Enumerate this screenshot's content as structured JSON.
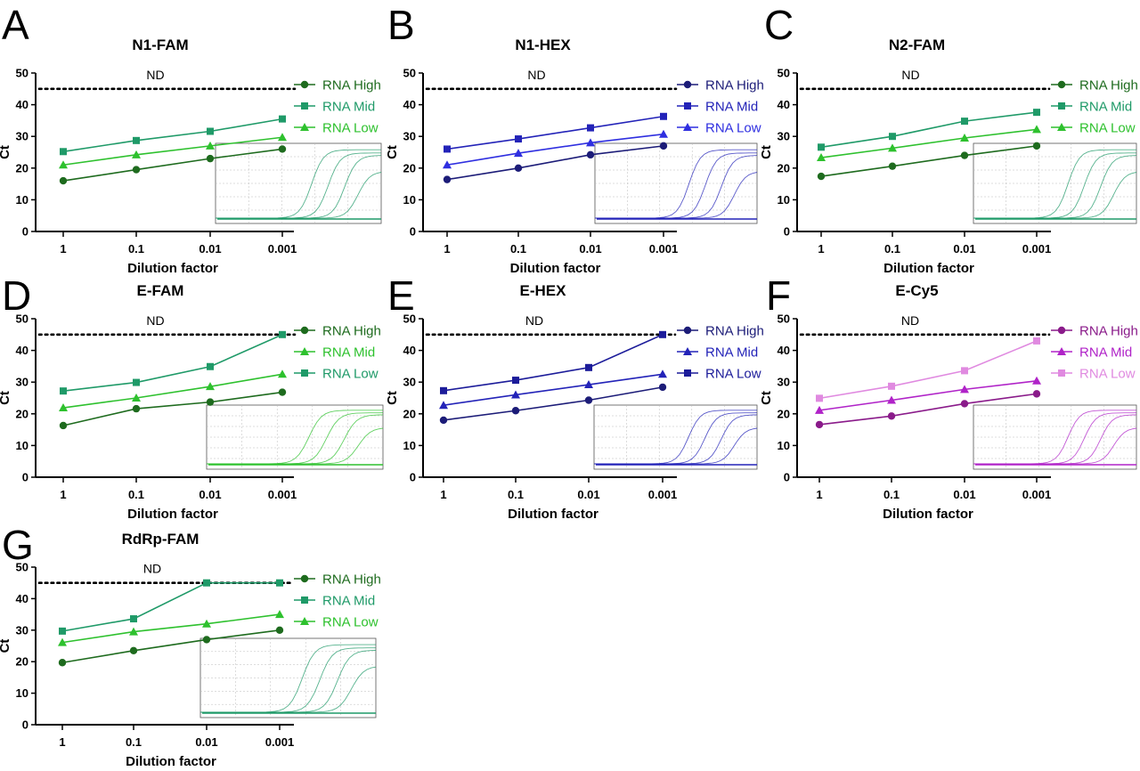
{
  "colors": {
    "fam_high": "#1e6b1e",
    "fam_mid": "#1f9a68",
    "fam_low": "#2ec12e",
    "hex_high": "#1c1c78",
    "hex_mid": "#2323b8",
    "hex_low": "#2f2fe0",
    "cy5_high": "#8a1b8a",
    "cy5_mid": "#b023c8",
    "cy5_low": "#e08ae0"
  },
  "chart_data": [
    {
      "panel": "A",
      "title": "N1-FAM",
      "type": "line",
      "xlabel": "Dilution factor",
      "ylabel": "Ct",
      "categories": [
        "1",
        "0.1",
        "0.01",
        "0.001"
      ],
      "ylim": [
        0,
        50
      ],
      "yticks": [
        "0",
        "10",
        "20",
        "30",
        "40",
        "50"
      ],
      "nd_label": "ND",
      "nd_value": 45,
      "legend_position": "top-right",
      "series": [
        {
          "name": "RNA High",
          "marker": "circle",
          "color": "#1e6b1e",
          "values": [
            16,
            19.5,
            23,
            26
          ]
        },
        {
          "name": "RNA Mid",
          "marker": "square",
          "color": "#1f9a68",
          "values": [
            25.2,
            28.7,
            31.6,
            35.5
          ]
        },
        {
          "name": "RNA Low",
          "marker": "triangle",
          "color": "#2ec12e",
          "values": [
            21,
            24.2,
            27,
            29.7
          ]
        }
      ]
    },
    {
      "panel": "B",
      "title": "N1-HEX",
      "type": "line",
      "xlabel": "Dilution factor",
      "ylabel": "Ct",
      "categories": [
        "1",
        "0.1",
        "0.01",
        "0.001"
      ],
      "ylim": [
        0,
        50
      ],
      "yticks": [
        "0",
        "10",
        "20",
        "30",
        "40",
        "50"
      ],
      "nd_label": "ND",
      "nd_value": 45,
      "legend_position": "top-right",
      "series": [
        {
          "name": "RNA High",
          "marker": "circle",
          "color": "#1c1c78",
          "values": [
            16.4,
            20,
            24.2,
            27
          ]
        },
        {
          "name": "RNA Mid",
          "marker": "square",
          "color": "#2323b8",
          "values": [
            26,
            29.2,
            32.7,
            36.3
          ]
        },
        {
          "name": "RNA Low",
          "marker": "triangle",
          "color": "#2f2fe0",
          "values": [
            21,
            24.7,
            28,
            30.7
          ]
        }
      ]
    },
    {
      "panel": "C",
      "title": "N2-FAM",
      "type": "line",
      "xlabel": "Dilution factor",
      "ylabel": "Ct",
      "categories": [
        "1",
        "0.1",
        "0.01",
        "0.001"
      ],
      "ylim": [
        0,
        50
      ],
      "yticks": [
        "0",
        "10",
        "20",
        "30",
        "40",
        "50"
      ],
      "nd_label": "ND",
      "nd_value": 45,
      "legend_position": "top-right",
      "series": [
        {
          "name": "RNA High",
          "marker": "circle",
          "color": "#1e6b1e",
          "values": [
            17.4,
            20.6,
            24,
            27
          ]
        },
        {
          "name": "RNA Mid",
          "marker": "square",
          "color": "#1f9a68",
          "values": [
            26.6,
            30,
            34.8,
            37.6
          ]
        },
        {
          "name": "RNA Low",
          "marker": "triangle",
          "color": "#2ec12e",
          "values": [
            23.3,
            26.3,
            29.5,
            32.2
          ]
        }
      ]
    },
    {
      "panel": "D",
      "title": "E-FAM",
      "type": "line",
      "xlabel": "Dilution factor",
      "ylabel": "Ct",
      "categories": [
        "1",
        "0.1",
        "0.01",
        "0.001"
      ],
      "ylim": [
        0,
        50
      ],
      "yticks": [
        "0",
        "10",
        "20",
        "30",
        "40",
        "50"
      ],
      "nd_label": "ND",
      "nd_value": 45,
      "legend_position": "top-right",
      "series": [
        {
          "name": "RNA High",
          "marker": "circle",
          "color": "#1e6b1e",
          "values": [
            16.3,
            21.6,
            23.7,
            26.8
          ]
        },
        {
          "name": "RNA Mid",
          "marker": "triangle",
          "color": "#2ec12e",
          "values": [
            21.9,
            25,
            28.6,
            32.5
          ]
        },
        {
          "name": "RNA Low",
          "marker": "square",
          "color": "#1f9a68",
          "values": [
            27.2,
            29.9,
            34.9,
            45
          ]
        }
      ]
    },
    {
      "panel": "E",
      "title": "E-HEX",
      "type": "line",
      "xlabel": "Dilution factor",
      "ylabel": "Ct",
      "categories": [
        "1",
        "0.1",
        "0.01",
        "0.001"
      ],
      "ylim": [
        0,
        50
      ],
      "yticks": [
        "0",
        "10",
        "20",
        "30",
        "40",
        "50"
      ],
      "nd_label": "ND",
      "nd_value": 45,
      "legend_position": "top-right",
      "series": [
        {
          "name": "RNA High",
          "marker": "circle",
          "color": "#1c1c78",
          "values": [
            18,
            21,
            24.3,
            28.4
          ]
        },
        {
          "name": "RNA Mid",
          "marker": "triangle",
          "color": "#2323b8",
          "values": [
            22.7,
            26,
            29.2,
            32.5
          ]
        },
        {
          "name": "RNA Low",
          "marker": "square",
          "color": "#1c1c9a",
          "values": [
            27.3,
            30.6,
            34.6,
            45
          ]
        }
      ]
    },
    {
      "panel": "F",
      "title": "E-Cy5",
      "type": "line",
      "xlabel": "Dilution factor",
      "ylabel": "Ct",
      "categories": [
        "1",
        "0.1",
        "0.01",
        "0.001"
      ],
      "ylim": [
        0,
        50
      ],
      "yticks": [
        "0",
        "10",
        "20",
        "30",
        "40",
        "50"
      ],
      "nd_label": "ND",
      "nd_value": 45,
      "legend_position": "top-right",
      "series": [
        {
          "name": "RNA High",
          "marker": "circle",
          "color": "#8a1b8a",
          "values": [
            16.6,
            19.3,
            23.2,
            26.3
          ]
        },
        {
          "name": "RNA Mid",
          "marker": "triangle",
          "color": "#b023c8",
          "values": [
            21.1,
            24.3,
            27.7,
            30.4
          ]
        },
        {
          "name": "RNA Low",
          "marker": "square",
          "color": "#e08ae0",
          "values": [
            24.9,
            28.7,
            33.6,
            43
          ]
        }
      ]
    },
    {
      "panel": "G",
      "title": "RdRp-FAM",
      "type": "line",
      "xlabel": "Dilution factor",
      "ylabel": "Ct",
      "categories": [
        "1",
        "0.1",
        "0.01",
        "0.001"
      ],
      "ylim": [
        0,
        50
      ],
      "yticks": [
        "0",
        "10",
        "20",
        "30",
        "40",
        "50"
      ],
      "nd_label": "ND",
      "nd_value": 45,
      "legend_position": "top-right",
      "series": [
        {
          "name": "RNA High",
          "marker": "circle",
          "color": "#1e6b1e",
          "values": [
            19.7,
            23.5,
            27,
            30
          ]
        },
        {
          "name": "RNA Mid",
          "marker": "square",
          "color": "#1f9a68",
          "values": [
            29.7,
            33.6,
            45,
            45
          ]
        },
        {
          "name": "RNA Low",
          "marker": "triangle",
          "color": "#2ec12e",
          "values": [
            26.1,
            29.5,
            32,
            35
          ]
        }
      ]
    }
  ]
}
